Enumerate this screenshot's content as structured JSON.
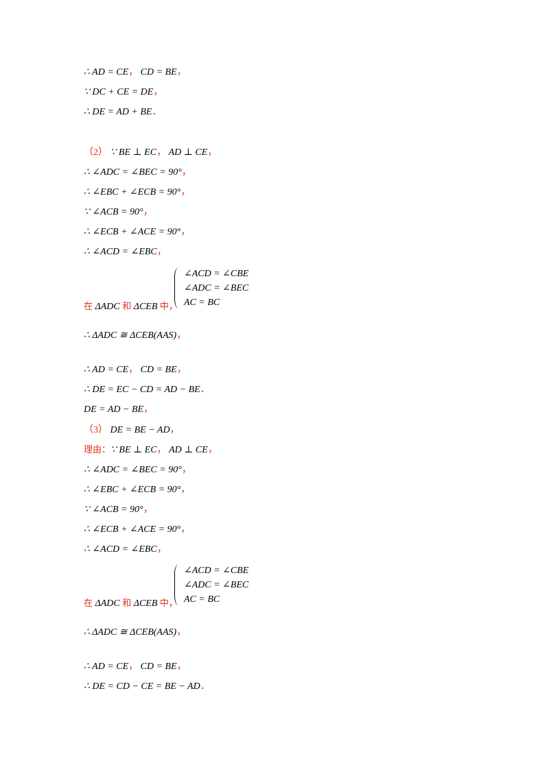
{
  "colors": {
    "text": "#000000",
    "accent": "#e0301e"
  },
  "lines": {
    "l1": {
      "m": "∴ AD = CE",
      "p1": "，",
      "m2": "CD = BE",
      "p2": "，"
    },
    "l2": {
      "m": "∵ DC + CE = DE",
      "p": "，"
    },
    "l3": {
      "m": "∴ DE = AD + BE",
      "p": "．"
    },
    "l4": {
      "label": "（2）",
      "m": "∵ BE ⊥ EC",
      "p1": "，",
      "m2": "AD ⊥ CE",
      "p2": "，"
    },
    "l5": {
      "m": "∴ ∠ADC = ∠BEC = 90°",
      "p": "，"
    },
    "l6": {
      "m": "∴ ∠EBC + ∠ECB = 90°",
      "p": "，"
    },
    "l7": {
      "m": "∵ ∠ACB = 90°",
      "p": "，"
    },
    "l8": {
      "m": "∴ ∠ECB + ∠ACE = 90°",
      "p": "，"
    },
    "l9": {
      "m": "∴ ∠ACD = ∠EBC",
      "p": "，"
    },
    "sys1": {
      "r1": "∠ACD = ∠CBE",
      "r2": "∠ADC = ∠BEC",
      "r3": "AC = BC"
    },
    "l10": {
      "c1": "在",
      "m1": "ΔADC",
      "c2": "和",
      "m2": "ΔCEB",
      "c3": "中，"
    },
    "l11": {
      "m": "∴ ΔADC ≅ ΔCEB(AAS)",
      "p": "，"
    },
    "l12": {
      "m": "∴ AD = CE",
      "p1": "，",
      "m2": "CD = BE",
      "p2": "，"
    },
    "l13": {
      "m": "∴ DE = EC − CD = AD − BE",
      "p": "．"
    },
    "l14": {
      "m": "DE = AD − BE",
      "p": "，"
    },
    "l15": {
      "label": "（3）",
      "m": "DE = BE − AD",
      "p": "，"
    },
    "l16": {
      "c": "理由：",
      "m": "∵ BE ⊥ EC",
      "p1": "，",
      "m2": "AD ⊥ CE",
      "p2": "，"
    },
    "l17": {
      "m": "∴ ∠ADC = ∠BEC = 90°",
      "p": "，"
    },
    "l18": {
      "m": "∴ ∠EBC + ∠ECB = 90°",
      "p": "，"
    },
    "l19": {
      "m": "∵ ∠ACB = 90°",
      "p": "，"
    },
    "l20": {
      "m": "∴ ∠ECB + ∠ACE = 90°",
      "p": "，"
    },
    "l21": {
      "m": "∴ ∠ACD = ∠EBC",
      "p": "，"
    },
    "sys2": {
      "r1": "∠ACD = ∠CBE",
      "r2": "∠ADC = ∠BEC",
      "r3": "AC = BC"
    },
    "l22": {
      "c1": "在",
      "m1": "ΔADC",
      "c2": "和",
      "m2": "ΔCEB",
      "c3": "中，"
    },
    "l23": {
      "m": "∴ ΔADC ≅ ΔCEB(AAS)",
      "p": "，"
    },
    "l24": {
      "m": "∴ AD = CE",
      "p1": "，",
      "m2": "CD = BE",
      "p2": "，"
    },
    "l25": {
      "m": "∴ DE = CD − CE = BE − AD",
      "p": "．"
    }
  }
}
